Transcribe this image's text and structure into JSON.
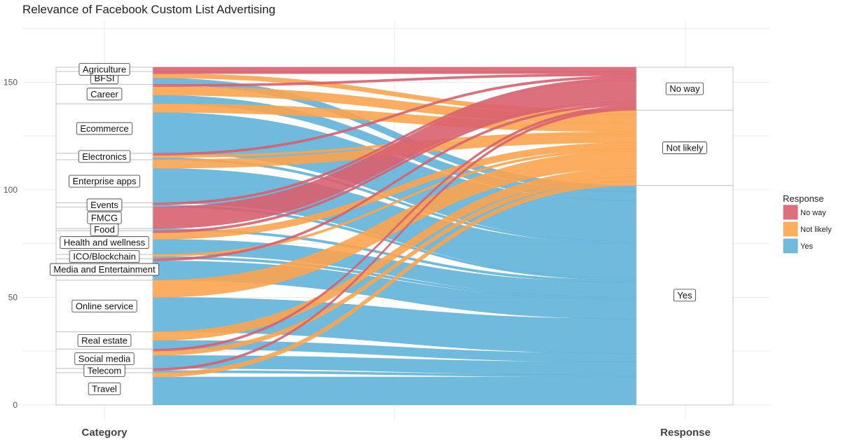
{
  "chart_data": {
    "type": "alluvial",
    "title": "Relevance of Facebook Custom List Advertising",
    "axis_labels": [
      "Category",
      "Response"
    ],
    "ylim": [
      0,
      170
    ],
    "yticks": [
      0,
      50,
      100,
      150
    ],
    "legend": {
      "title": "Response",
      "position": "right",
      "entries": [
        {
          "label": "No way",
          "color": "#d9606f"
        },
        {
          "label": "Not likely",
          "color": "#fca44e"
        },
        {
          "label": "Yes",
          "color": "#61b3da"
        }
      ]
    },
    "responses": [
      "No way",
      "Not likely",
      "Yes"
    ],
    "categories": [
      {
        "name": "Travel",
        "no_way": 0,
        "not_likely": 2,
        "yes": 13
      },
      {
        "name": "Telecom",
        "no_way": 1,
        "not_likely": 0,
        "yes": 1
      },
      {
        "name": "Social media",
        "no_way": 1,
        "not_likely": 2,
        "yes": 6
      },
      {
        "name": "Real estate",
        "no_way": 0,
        "not_likely": 4,
        "yes": 4
      },
      {
        "name": "Online service",
        "no_way": 0,
        "not_likely": 8,
        "yes": 16
      },
      {
        "name": "Media and Entertainment",
        "no_way": 1,
        "not_likely": 0,
        "yes": 9
      },
      {
        "name": "ICO/Blockchain",
        "no_way": 0,
        "not_likely": 1,
        "yes": 1
      },
      {
        "name": "Health and wellness",
        "no_way": 1,
        "not_likely": 3,
        "yes": 7
      },
      {
        "name": "Food",
        "no_way": 0,
        "not_likely": 0,
        "yes": 1
      },
      {
        "name": "FMCG",
        "no_way": 10,
        "not_likely": 0,
        "yes": 0
      },
      {
        "name": "Events",
        "no_way": 1,
        "not_likely": 0,
        "yes": 1
      },
      {
        "name": "Enterprise apps",
        "no_way": 0,
        "not_likely": 4,
        "yes": 16
      },
      {
        "name": "Electronics",
        "no_way": 1,
        "not_likely": 1,
        "yes": 1
      },
      {
        "name": "Ecommerce",
        "no_way": 0,
        "not_likely": 4,
        "yes": 19
      },
      {
        "name": "Career",
        "no_way": 1,
        "not_likely": 4,
        "yes": 4
      },
      {
        "name": "BFSI",
        "no_way": 1,
        "not_likely": 2,
        "yes": 3
      },
      {
        "name": "Agriculture",
        "no_way": 2,
        "not_likely": 0,
        "yes": 0
      }
    ]
  }
}
